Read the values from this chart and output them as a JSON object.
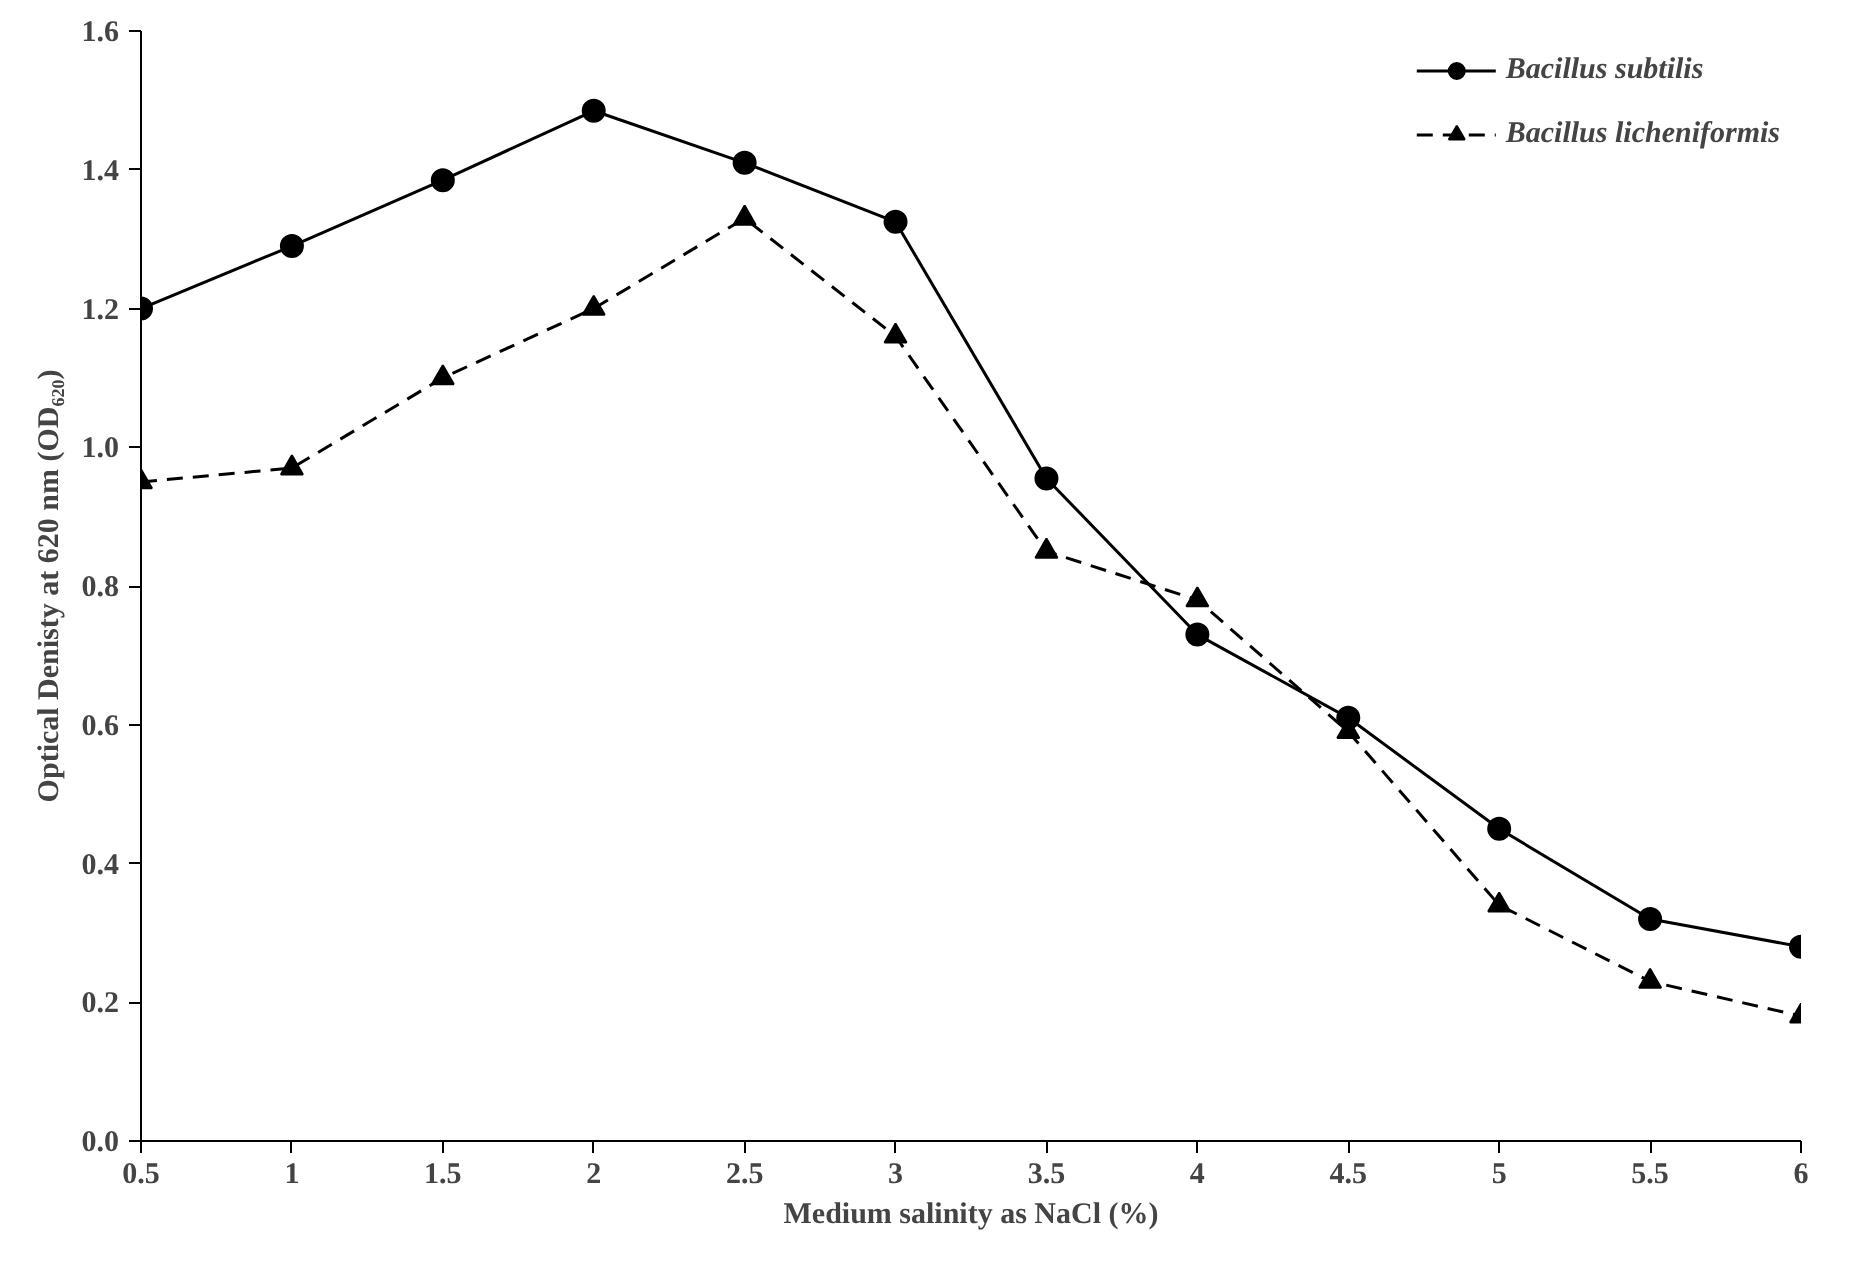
{
  "chart_data": {
    "type": "line",
    "xlabel": "Medium salinity as NaCl (%)",
    "ylabel": "Optical Denisty at 620 nm (OD₆₂₀)",
    "x": [
      0.5,
      1,
      1.5,
      2,
      2.5,
      3,
      3.5,
      4,
      4.5,
      5,
      5.5,
      6
    ],
    "series": [
      {
        "name": "Bacillus subtilis",
        "color": "#000000",
        "marker": "circle",
        "line_style": "solid",
        "values": [
          1.2,
          1.29,
          1.385,
          1.485,
          1.41,
          1.325,
          0.955,
          0.73,
          0.61,
          0.45,
          0.32,
          0.28
        ]
      },
      {
        "name": "Bacillus licheniformis",
        "color": "#000000",
        "marker": "triangle",
        "line_style": "dashed",
        "values": [
          0.95,
          0.97,
          1.1,
          1.2,
          1.33,
          1.16,
          0.85,
          0.78,
          0.59,
          0.34,
          0.23,
          0.18
        ]
      }
    ],
    "xlim": [
      0.5,
      6
    ],
    "xticks": [
      0.5,
      1,
      1.5,
      2,
      2.5,
      3,
      3.5,
      4,
      4.5,
      5,
      5.5,
      6
    ],
    "ylim": [
      0,
      1.6
    ],
    "yticks": [
      {
        "value": 0,
        "label": "0.0"
      },
      {
        "value": 0.2,
        "label": "0.2"
      },
      {
        "value": 0.4,
        "label": "0.4"
      },
      {
        "value": 0.6,
        "label": "0.6"
      },
      {
        "value": 0.8,
        "label": "0.8"
      },
      {
        "value": 1.0,
        "label": "1.0"
      },
      {
        "value": 1.2,
        "label": "1.2"
      },
      {
        "value": 1.4,
        "label": "1.4"
      },
      {
        "value": 1.6,
        "label": "1.6"
      }
    ],
    "grid": false,
    "legend": "top right"
  }
}
